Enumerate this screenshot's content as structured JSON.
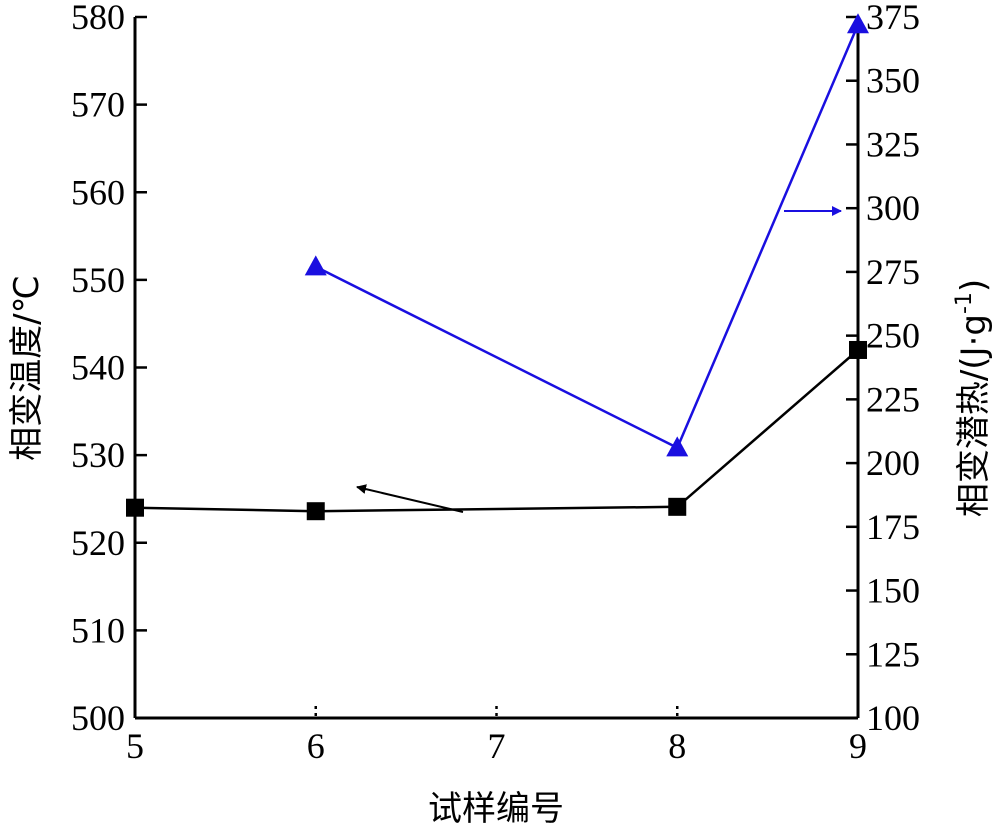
{
  "chart_data": {
    "type": "line",
    "xlabel": "试样编号",
    "ylabel_left": "相变温度/℃",
    "ylabel_right_main": "相变潜热/(J·g",
    "ylabel_right_sup": "-1",
    "ylabel_right_close": ")",
    "x_ticks": [
      "5",
      "6",
      "7",
      "8",
      "9"
    ],
    "x_range": [
      5,
      9
    ],
    "ylim_left": [
      500,
      580
    ],
    "ylim_right": [
      100,
      375
    ],
    "y_ticks_left": [
      "500",
      "510",
      "520",
      "530",
      "540",
      "550",
      "560",
      "570",
      "580"
    ],
    "y_ticks_right": [
      "100",
      "125",
      "150",
      "175",
      "200",
      "225",
      "250",
      "275",
      "300",
      "325",
      "350",
      "375"
    ],
    "grid": false,
    "series": [
      {
        "axis": "left",
        "marker": "square",
        "color": "#000000",
        "x": [
          5,
          6,
          8,
          9
        ],
        "y": [
          524.0,
          523.6,
          524.1,
          542.0
        ]
      },
      {
        "axis": "right",
        "marker": "triangle",
        "color": "#1a0fe0",
        "x": [
          6,
          8,
          9
        ],
        "y": [
          277,
          206,
          372
        ]
      }
    ],
    "annotations": [
      {
        "type": "arrow",
        "points_to": "left axis",
        "color": "#000000"
      },
      {
        "type": "arrow",
        "points_to": "right axis",
        "color": "#1a0fe0"
      }
    ]
  }
}
